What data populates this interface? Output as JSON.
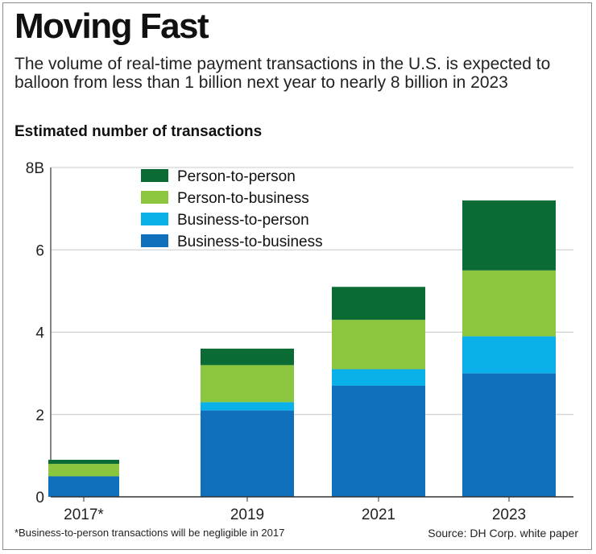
{
  "header": {
    "title": "Moving Fast",
    "subtitle": "The volume of real-time payment transactions in the U.S. is expected to balloon from less than 1 billion next year to nearly 8 billion in 2023"
  },
  "footer": {
    "footnote": "*Business-to-person transactions will be negligible in 2017",
    "source": "Source: DH Corp. white paper"
  },
  "colors": {
    "person_to_person": "#0b6b35",
    "person_to_business": "#8cc63f",
    "business_to_person": "#0ab0ea",
    "business_to_business": "#1170bb",
    "grid": "#c8c8c8",
    "axis": "#333333"
  },
  "chart_data": {
    "type": "bar",
    "stacked": true,
    "title": "Moving Fast",
    "ylabel": "Estimated number of transactions",
    "xlabel": "",
    "categories": [
      "2017*",
      "2019",
      "2021",
      "2023"
    ],
    "ylim": [
      0,
      8
    ],
    "yticks": [
      0,
      2,
      4,
      6,
      8
    ],
    "ytick_labels": [
      "0",
      "2",
      "4",
      "6",
      "8B"
    ],
    "grid": true,
    "legend_position": "top-left",
    "series": [
      {
        "name": "Business-to-business",
        "color": "#1170bb",
        "values": [
          0.5,
          2.1,
          2.7,
          3.0
        ]
      },
      {
        "name": "Business-to-person",
        "color": "#0ab0ea",
        "values": [
          0.0,
          0.2,
          0.4,
          0.9
        ]
      },
      {
        "name": "Person-to-business",
        "color": "#8cc63f",
        "values": [
          0.3,
          0.9,
          1.2,
          1.6
        ]
      },
      {
        "name": "Person-to-person",
        "color": "#0b6b35",
        "values": [
          0.1,
          0.4,
          0.8,
          1.7
        ]
      }
    ],
    "legend_order": [
      "Person-to-person",
      "Person-to-business",
      "Business-to-person",
      "Business-to-business"
    ]
  }
}
